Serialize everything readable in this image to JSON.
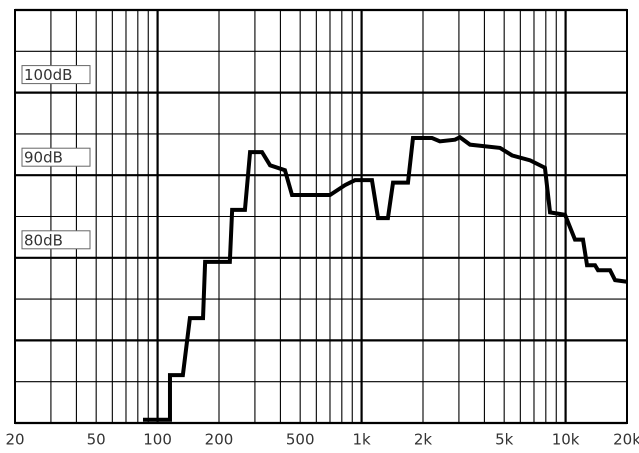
{
  "chart_data": {
    "type": "line",
    "x": [
      84.8,
      115,
      115,
      133,
      144,
      167,
      171,
      226,
      232,
      268,
      284,
      325,
      356,
      421,
      456,
      700,
      830,
      928,
      1124,
      1204,
      1346,
      1426,
      1688,
      1786,
      2214,
      2420,
      2870,
      3034,
      3400,
      4770,
      5460,
      6700,
      7920,
      8390,
      9940,
      11120,
      12170,
      12740,
      13940,
      14420,
      16520,
      17480,
      20000
    ],
    "values": [
      60.4,
      60.4,
      65.8,
      65.8,
      72.7,
      72.7,
      79.5,
      79.5,
      85.8,
      85.8,
      92.8,
      92.8,
      91.2,
      90.6,
      87.6,
      87.6,
      88.8,
      89.4,
      89.4,
      84.8,
      84.8,
      89.1,
      89.1,
      94.5,
      94.5,
      94.1,
      94.3,
      94.6,
      93.7,
      93.3,
      92.4,
      91.8,
      90.9,
      85.5,
      85.2,
      82.2,
      82.2,
      79.1,
      79.1,
      78.5,
      78.5,
      77.3,
      77.1
    ],
    "color": "#000000",
    "xscale": "log",
    "xlim": [
      20,
      20000
    ],
    "ylim": [
      60,
      110
    ],
    "xticks": [
      20,
      50,
      100,
      200,
      500,
      {
        "value": 1000,
        "label": "1k"
      },
      {
        "value": 2000,
        "label": "2k"
      },
      {
        "value": 5000,
        "label": "5k"
      },
      {
        "value": 10000,
        "label": "10k"
      },
      {
        "value": 20000,
        "label": "20k"
      }
    ],
    "yticks": [
      {
        "value": 100,
        "label": "100dB"
      },
      {
        "value": 90,
        "label": "90dB"
      },
      {
        "value": 80,
        "label": "80dB"
      }
    ],
    "xgrid": [
      20,
      30,
      40,
      50,
      60,
      70,
      80,
      90,
      100,
      200,
      300,
      400,
      500,
      600,
      700,
      800,
      900,
      1000,
      2000,
      3000,
      4000,
      5000,
      6000,
      7000,
      8000,
      9000,
      10000,
      20000
    ],
    "ygrid": [
      60,
      65,
      70,
      75,
      80,
      85,
      90,
      95,
      100,
      105,
      110
    ],
    "grid": true
  }
}
